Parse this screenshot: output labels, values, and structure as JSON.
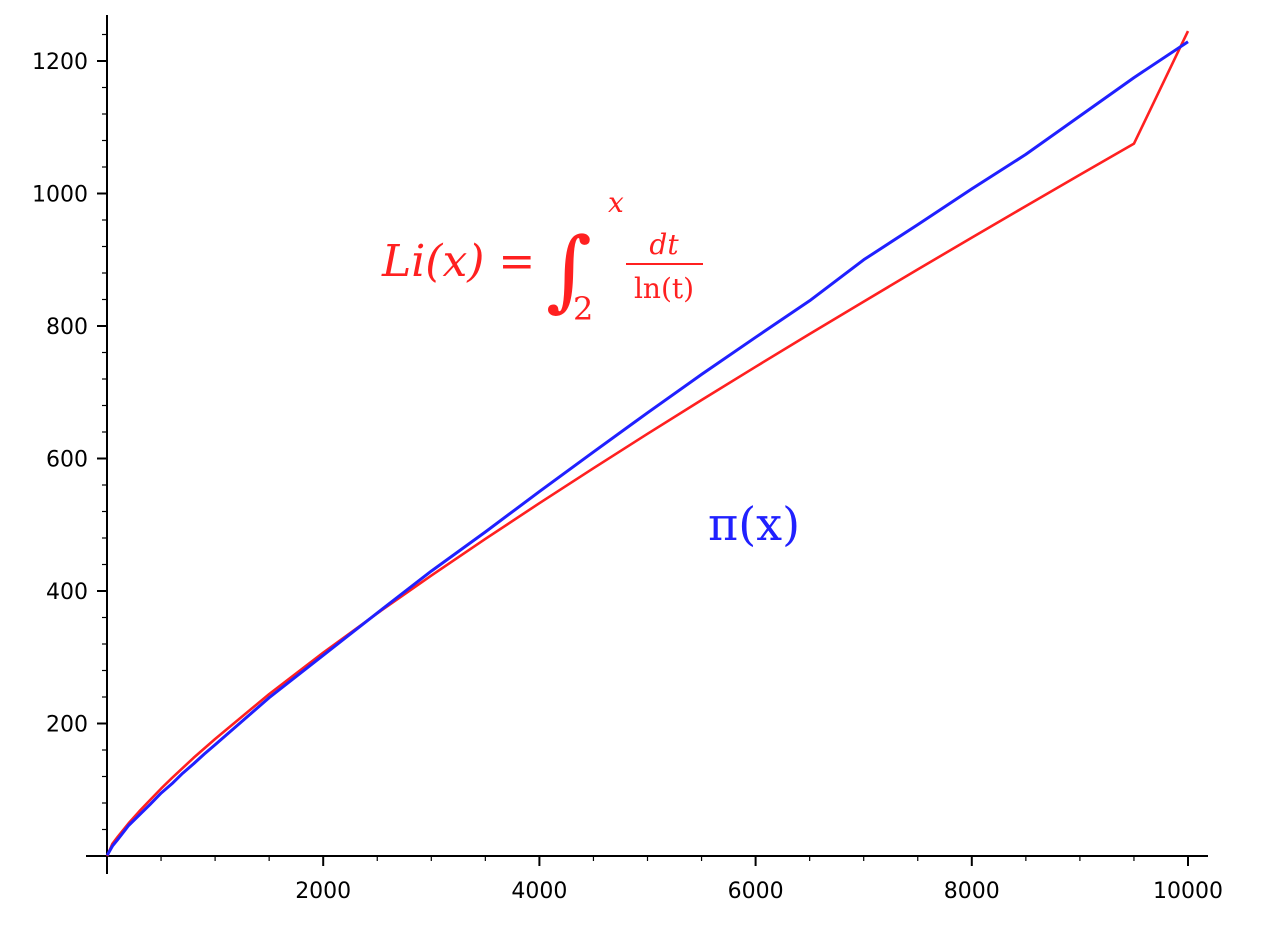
{
  "chart_data": {
    "type": "line",
    "title": "",
    "xlabel": "",
    "ylabel": "",
    "xlim": [
      0,
      10000
    ],
    "ylim": [
      0,
      1250
    ],
    "grid": false,
    "x_ticks": [
      2000,
      4000,
      6000,
      8000,
      10000
    ],
    "y_ticks": [
      200,
      400,
      600,
      800,
      1000,
      1200
    ],
    "colors": {
      "li": "#ff2020",
      "pi": "#2020ff",
      "axis": "#000000"
    },
    "series": [
      {
        "key": "li",
        "x": [
          2,
          50,
          100,
          200,
          300,
          400,
          500,
          600,
          800,
          1000,
          1500,
          2000,
          2500,
          3000,
          3500,
          4000,
          4500,
          5000,
          5500,
          6000,
          6500,
          7000,
          7500,
          8000,
          8500,
          9000,
          9500,
          10000
        ],
        "values": [
          0,
          18.4,
          29.1,
          49.4,
          67.6,
          84.7,
          101.8,
          117.6,
          148.1,
          176.6,
          244.4,
          306.8,
          366.4,
          423.3,
          478.6,
          532.5,
          585.4,
          637.3,
          688.3,
          738.4,
          787.9,
          836.9,
          885.4,
          933.4,
          981.0,
          1028.3,
          1075.3,
          1245.1
        ]
      },
      {
        "key": "pi",
        "x": [
          2,
          50,
          100,
          200,
          300,
          400,
          500,
          600,
          700,
          800,
          900,
          1000,
          1500,
          2000,
          2500,
          3000,
          3500,
          4000,
          4500,
          5000,
          5500,
          6000,
          6500,
          7000,
          7500,
          8000,
          8500,
          9000,
          9500,
          10000
        ],
        "values": [
          1,
          15,
          25,
          46,
          62,
          78,
          95,
          109,
          125,
          139,
          154,
          168,
          239,
          303,
          367,
          430,
          489,
          550,
          610,
          669,
          727,
          783,
          838,
          900,
          953,
          1007,
          1059,
          1117,
          1175,
          1229
        ]
      }
    ],
    "annotations": {
      "li": {
        "lhs": "Li(x) = ",
        "upper": "x",
        "lower": "2",
        "num": "dt",
        "den": "ln(t)"
      },
      "pi": {
        "text": "π(x)"
      }
    }
  }
}
